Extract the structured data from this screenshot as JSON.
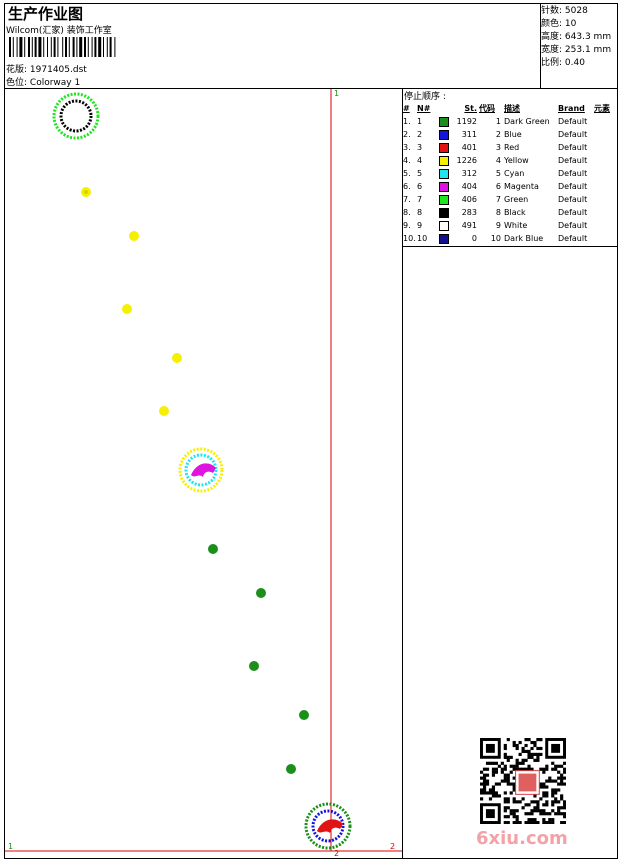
{
  "header": {
    "title": "生产作业图",
    "company": "Wilcom(汇家) 装饰工作室",
    "design_label": "花版:",
    "design_value": "1971405.dst",
    "colorway_label": "色位:",
    "colorway_value": "Colorway 1"
  },
  "stats": [
    {
      "label": "针数:",
      "value": "5028"
    },
    {
      "label": "颜色:",
      "value": "10"
    },
    {
      "label": "高度:",
      "value": "643.3 mm"
    },
    {
      "label": "宽度:",
      "value": "253.1 mm"
    },
    {
      "label": "比例:",
      "value": "0.40"
    }
  ],
  "stop_sequence": {
    "title": "停止顺序 :",
    "columns": [
      "#",
      "N#",
      "",
      "St.",
      "代码",
      "描述",
      "Brand",
      "元素"
    ],
    "rows": [
      {
        "idx": "1.",
        "n": "1",
        "color": "#1a8f1a",
        "st": "1192",
        "code": "1",
        "desc": "Dark Green",
        "brand": "Default"
      },
      {
        "idx": "2.",
        "n": "2",
        "color": "#1414e0",
        "st": "311",
        "code": "2",
        "desc": "Blue",
        "brand": "Default"
      },
      {
        "idx": "3.",
        "n": "3",
        "color": "#e01414",
        "st": "401",
        "code": "3",
        "desc": "Red",
        "brand": "Default"
      },
      {
        "idx": "4.",
        "n": "4",
        "color": "#f5f000",
        "st": "1226",
        "code": "4",
        "desc": "Yellow",
        "brand": "Default"
      },
      {
        "idx": "5.",
        "n": "5",
        "color": "#1ee6f0",
        "st": "312",
        "code": "5",
        "desc": "Cyan",
        "brand": "Default"
      },
      {
        "idx": "6.",
        "n": "6",
        "color": "#e014e0",
        "st": "404",
        "code": "6",
        "desc": "Magenta",
        "brand": "Default"
      },
      {
        "idx": "7.",
        "n": "7",
        "color": "#1ee61e",
        "st": "406",
        "code": "7",
        "desc": "Green",
        "brand": "Default"
      },
      {
        "idx": "8.",
        "n": "8",
        "color": "#000000",
        "st": "283",
        "code": "8",
        "desc": "Black",
        "brand": "Default"
      },
      {
        "idx": "9.",
        "n": "9",
        "color": "#ffffff",
        "st": "491",
        "code": "9",
        "desc": "White",
        "brand": "Default"
      },
      {
        "idx": "10.",
        "n": "10",
        "color": "#101090",
        "st": "0",
        "code": "10",
        "desc": "Dark Blue",
        "brand": "Default"
      }
    ]
  },
  "canvas": {
    "axis_labels": [
      "1",
      "1",
      "2",
      "2"
    ]
  },
  "watermark": "6xiu.com"
}
